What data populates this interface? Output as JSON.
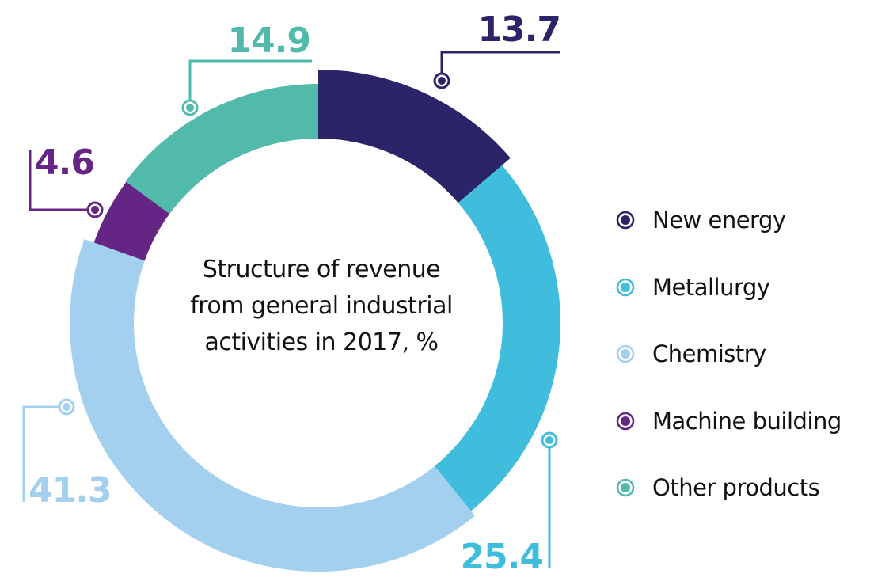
{
  "chart_data": {
    "type": "pie",
    "subtype": "donut",
    "title": "Structure of revenue from general industrial activities in 2017, %",
    "title_lines": [
      "Structure of revenue",
      "from general industrial",
      "activities in 2017, %"
    ],
    "unit": "%",
    "legend_position": "right",
    "categories": [
      "New energy",
      "Metallurgy",
      "Chemistry",
      "Machine building",
      "Other products"
    ],
    "values": [
      13.7,
      25.4,
      41.3,
      4.6,
      14.9
    ],
    "value_labels": [
      "13.7",
      "25.4",
      "41.3",
      "4.6",
      "14.9"
    ],
    "colors": [
      "#2b2468",
      "#40bddd",
      "#a4d0f0",
      "#642584",
      "#52baab"
    ]
  }
}
